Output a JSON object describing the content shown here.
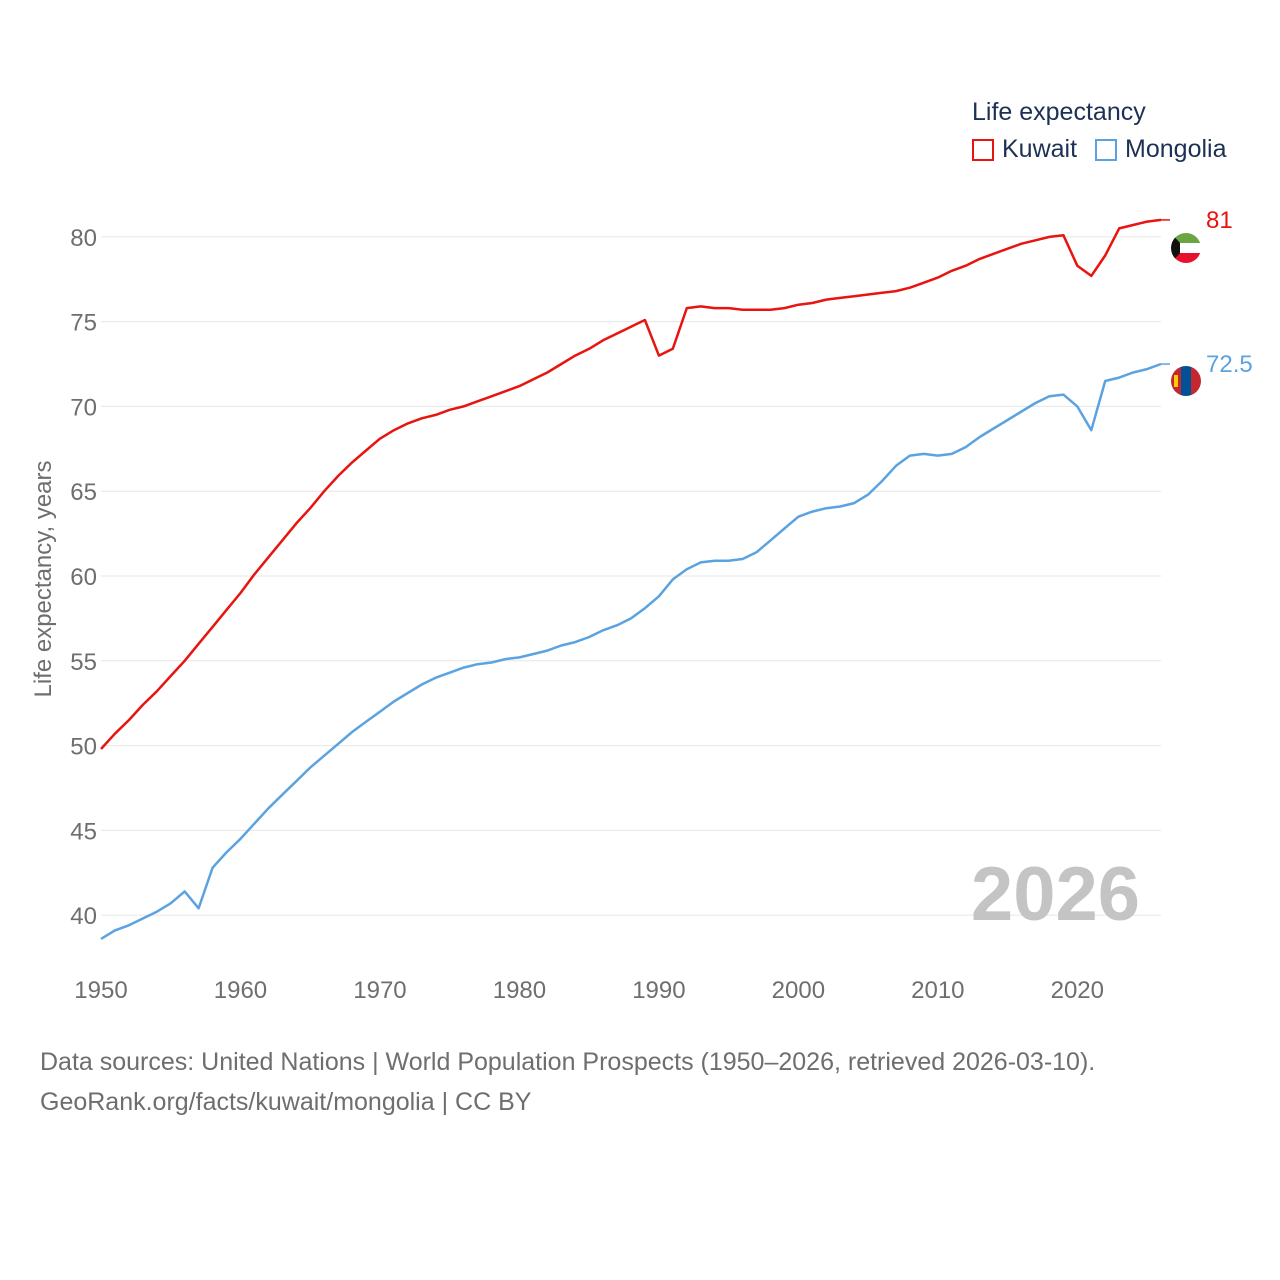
{
  "chart_data": {
    "type": "line",
    "title": "",
    "xlabel": "",
    "ylabel": "Life expectancy, years",
    "xlim": [
      1950,
      2026
    ],
    "ylim": [
      37,
      83
    ],
    "x_ticks": [
      "1950",
      "1960",
      "1970",
      "1980",
      "1990",
      "2000",
      "2010",
      "2020"
    ],
    "y_ticks": [
      "40",
      "45",
      "50",
      "55",
      "60",
      "65",
      "70",
      "75",
      "80"
    ],
    "year_watermark": "2026",
    "legend_title": "Life expectancy",
    "x": [
      1950,
      1951,
      1952,
      1953,
      1954,
      1955,
      1956,
      1957,
      1958,
      1959,
      1960,
      1961,
      1962,
      1963,
      1964,
      1965,
      1966,
      1967,
      1968,
      1969,
      1970,
      1971,
      1972,
      1973,
      1974,
      1975,
      1976,
      1977,
      1978,
      1979,
      1980,
      1981,
      1982,
      1983,
      1984,
      1985,
      1986,
      1987,
      1988,
      1989,
      1990,
      1991,
      1992,
      1993,
      1994,
      1995,
      1996,
      1997,
      1998,
      1999,
      2000,
      2001,
      2002,
      2003,
      2004,
      2005,
      2006,
      2007,
      2008,
      2009,
      2010,
      2011,
      2012,
      2013,
      2014,
      2015,
      2016,
      2017,
      2018,
      2019,
      2020,
      2021,
      2022,
      2023,
      2024,
      2025,
      2026
    ],
    "series": [
      {
        "name": "Kuwait",
        "color": "#e8140f",
        "end_label": "81",
        "flag": "kuwait",
        "values": [
          49.8,
          50.7,
          51.5,
          52.4,
          53.2,
          54.1,
          55.0,
          56.0,
          57.0,
          58.0,
          59.0,
          60.1,
          61.1,
          62.1,
          63.1,
          64.0,
          65.0,
          65.9,
          66.7,
          67.4,
          68.1,
          68.6,
          69.0,
          69.3,
          69.5,
          69.8,
          70.0,
          70.3,
          70.6,
          70.9,
          71.2,
          71.6,
          72.0,
          72.5,
          73.0,
          73.4,
          73.9,
          74.3,
          74.7,
          75.1,
          73.0,
          73.4,
          75.8,
          75.9,
          75.8,
          75.8,
          75.7,
          75.7,
          75.7,
          75.8,
          76.0,
          76.1,
          76.3,
          76.4,
          76.5,
          76.6,
          76.7,
          76.8,
          77.0,
          77.3,
          77.6,
          78.0,
          78.3,
          78.7,
          79.0,
          79.3,
          79.6,
          79.8,
          80.0,
          80.1,
          78.3,
          77.7,
          78.9,
          80.5,
          80.7,
          80.9,
          81.0
        ]
      },
      {
        "name": "Mongolia",
        "color": "#5ba3e0",
        "end_label": "72.5",
        "flag": "mongolia",
        "values": [
          38.6,
          39.1,
          39.4,
          39.8,
          40.2,
          40.7,
          41.4,
          40.4,
          42.8,
          43.7,
          44.5,
          45.4,
          46.3,
          47.1,
          47.9,
          48.7,
          49.4,
          50.1,
          50.8,
          51.4,
          52.0,
          52.6,
          53.1,
          53.6,
          54.0,
          54.3,
          54.6,
          54.8,
          54.9,
          55.1,
          55.2,
          55.4,
          55.6,
          55.9,
          56.1,
          56.4,
          56.8,
          57.1,
          57.5,
          58.1,
          58.8,
          59.8,
          60.4,
          60.8,
          60.9,
          60.9,
          61.0,
          61.4,
          62.1,
          62.8,
          63.5,
          63.8,
          64.0,
          64.1,
          64.3,
          64.8,
          65.6,
          66.5,
          67.1,
          67.2,
          67.1,
          67.2,
          67.6,
          68.2,
          68.7,
          69.2,
          69.7,
          70.2,
          70.6,
          70.7,
          70.0,
          68.6,
          71.5,
          71.7,
          72.0,
          72.2,
          72.5
        ]
      }
    ]
  },
  "source": {
    "line1": "Data sources: United Nations | World Population Prospects (1950–2026, retrieved 2026-03-10).",
    "line2": "GeoRank.org/facts/kuwait/mongolia | CC BY"
  }
}
